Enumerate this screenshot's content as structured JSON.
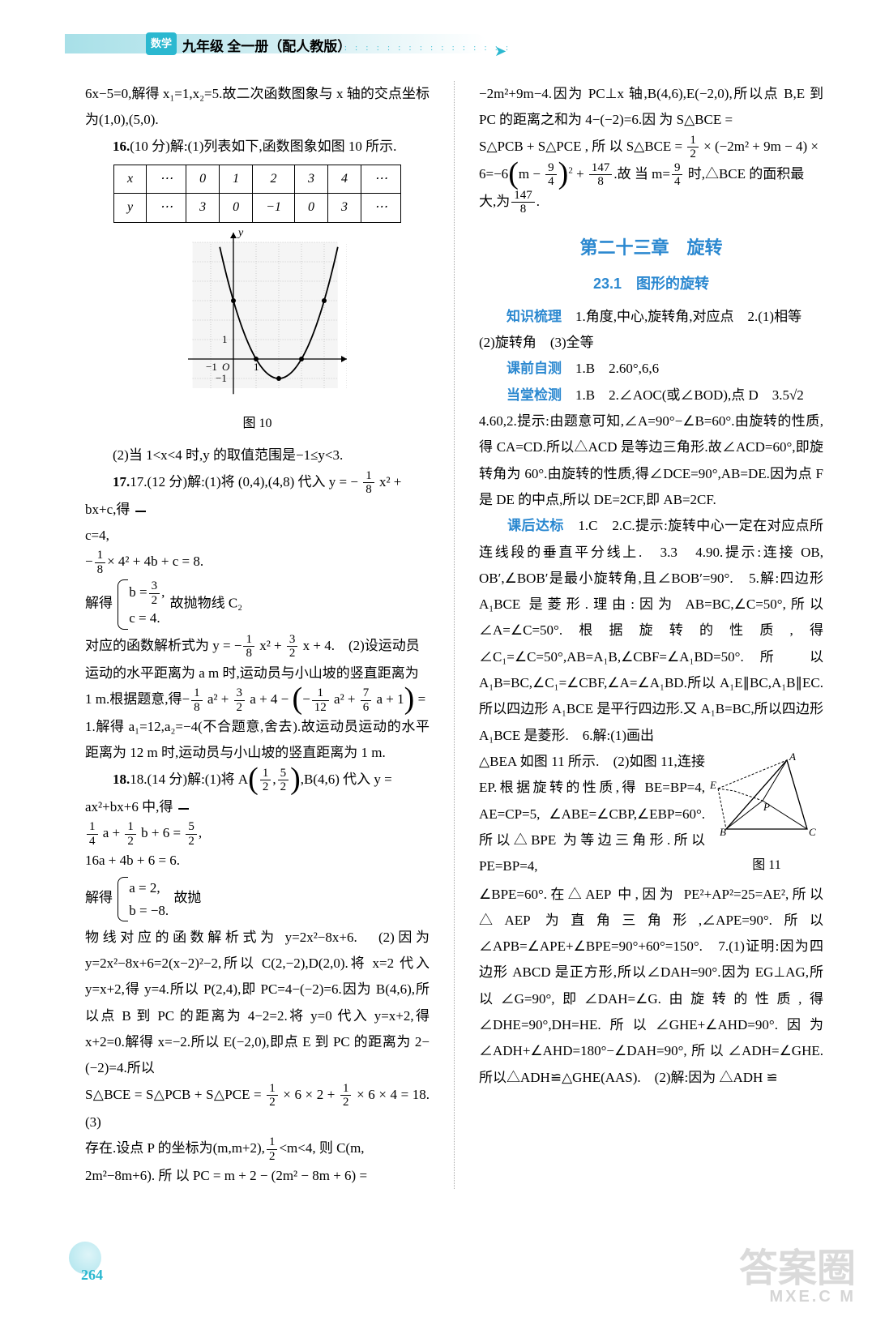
{
  "header": {
    "badge": "数学",
    "title": "九年级 全一册（配人教版）"
  },
  "left": {
    "p1": "6x−5=0,解得 x₁=1,x₂=5.故二次函数图象与 x 轴的交点坐标为(1,0),(5,0).",
    "p2_bold": "16.",
    "p2": "(10 分)解:(1)列表如下,函数图象如图 10 所示.",
    "table": {
      "r1": [
        "x",
        "⋯",
        "0",
        "1",
        "2",
        "3",
        "4",
        "⋯"
      ],
      "r2": [
        "y",
        "⋯",
        "3",
        "0",
        "−1",
        "0",
        "3",
        "⋯"
      ]
    },
    "graph": {
      "type": "parabola",
      "xlim": [
        -2,
        5
      ],
      "ylim": [
        -2,
        6
      ],
      "points_x": [
        0,
        1,
        2,
        3,
        4
      ],
      "points_y": [
        3,
        0,
        -1,
        0,
        3
      ],
      "axis_color": "#000",
      "grid_color": "#bbb",
      "curve_color": "#000",
      "bg_color": "#f5f5f5",
      "x_label": "x",
      "y_label": "y",
      "caption": "图 10"
    },
    "p3": "(2)当 1<x<4 时,y 的取值范围是−1≤y<3.",
    "p4_head": "17.(12 分)解:(1)将 (0,4),(4,8) 代入 y = −",
    "p4_tail": " x² +",
    "sys1_pre": "bx+c,得",
    "sys1_a": "c=4,",
    "sys1_b": "× 4² + 4b + c = 8.",
    "sys1_b_frac_top": "1",
    "sys1_b_frac_bot": "8",
    "sys1_mid": "解得",
    "sys2_a_lhs": "b =",
    "sys2_a_frac_top": "3",
    "sys2_a_frac_bot": "2",
    "sys2_a_tail": ",",
    "sys2_b": "c = 4.",
    "sys_tail": "故抛物线 C₂",
    "p5_pre": "对应的函数解析式为 y = −",
    "p5_mid1": " x² + ",
    "p5_mid2": " x + 4.　(2)设运动员",
    "p6": "运动的水平距离为 a m 时,运动员与小山坡的竖直距离为",
    "p7_pre": "1 m.根据题意,得−",
    "p7_a": " a² + ",
    "p7_b": " a + 4 − ",
    "p7_c": " a² + ",
    "p7_d": " a + 1",
    "p7_tail": " =",
    "p8": "1.解得 a₁=12,a₂=−4(不合题意,舍去).故运动员运动的水平距离为 12 m 时,运动员与小山坡的竖直距离为 1 m.",
    "p9_pre": "18.(14 分)解:(1)将 A",
    "p9_mid": ",B(4,6) 代入 y =",
    "sys3_pre": "ax²+bx+6 中,得",
    "sys3_a_f1t": "1",
    "sys3_a_f1b": "4",
    "sys3_a_mid": " a + ",
    "sys3_a_f2t": "1",
    "sys3_a_f2b": "2",
    "sys3_a_tail": " b + 6 = ",
    "sys3_a_f3t": "5",
    "sys3_a_f3b": "2",
    "sys3_a_end": ",",
    "sys3_b": "16a + 4b + 6 = 6.",
    "sys3_mid": "解得",
    "sys4_a": "a = 2,",
    "sys4_b": "b = −8.",
    "sys3_tail": "故抛",
    "p10": "物线对应的函数解析式为 y=2x²−8x+6.　(2)因为 y=2x²−8x+6=2(x−2)²−2,所以 C(2,−2),D(2,0).将 x=2 代入 y=x+2,得 y=4.所以 P(2,4),即 PC=4−(−2)=6.因为 B(4,6),所以点 B 到 PC 的距离为 4−2=2.将 y=0 代入 y=x+2,得 x+2=0.解得 x=−2.所以 E(−2,0),即点 E 到 PC 的距离为 2−(−2)=4.所以",
    "p11_pre": "S△BCE = S△PCB + S△PCE = ",
    "p11_m1": " × 6 × 2 + ",
    "p11_m2": " × 6 × 4 = 18.　(3)",
    "p12_pre": "存在.设点 P 的坐标为(m,m+2),",
    "p12_mid": "<m<4, 则 C(m,",
    "p13": "2m²−8m+6). 所 以 PC = m + 2 − (2m² − 8m + 6) ="
  },
  "right": {
    "p1_pre": "−2m²+9m−4.因为 PC⊥x 轴,B(4,6),E(−2,0),所以点 B,E 到 PC 的距离之和为 4−(−2)=6.因 为 S△BCE =",
    "p2_pre": "S△PCB + S△PCE , 所 以 S△BCE = ",
    "p2_mid": " × (−2m² + 9m − 4) ×",
    "p3_pre": "6=−6",
    "p3_m": "m − ",
    "p3_mid": " + ",
    "p3_end1": ".故 当 m=",
    "p3_end2": " 时,△BCE 的面积最",
    "p4_pre": "大,为",
    "p4_end": ".",
    "chapter": "第二十三章　旋转",
    "section": "23.1　图形的旋转",
    "k1_label": "知识梳理",
    "k1": "　1.角度,中心,旋转角,对应点　2.(1)相等",
    "k1b": "(2)旋转角　(3)全等",
    "k2_label": "课前自测",
    "k2": "　1.B　2.60°,6,6",
    "k3_label": "当堂检测",
    "k3": "　1.B　2.∠AOC(或∠BOD),点 D　3.5√2",
    "k3b": "4.60,2.提示:由题意可知,∠A=90°−∠B=60°.由旋转的性质,得 CA=CD.所以△ACD 是等边三角形.故∠ACD=60°,即旋转角为 60°.由旋转的性质,得∠DCE=90°,AB=DE.因为点 F 是 DE 的中点,所以 DE=2CF,即 AB=2CF.",
    "k4_label": "课后达标",
    "k4": "　1.C　2.C.提示:旋转中心一定在对应点所连线段的垂直平分线上.　3.3　4.90.提示:连接 OB, OB′,∠BOB′是最小旋转角,且∠BOB′=90°.　5.解:四边形 A₁BCE 是菱形.理由:因为 AB=BC,∠C=50°,所以∠A=∠C=50°.根据旋转的性质,得∠C₁=∠C=50°,AB=A₁B,∠CBF=∠A₁BD=50°.所 以 A₁B=BC,∠C₁=∠CBF,∠A=∠A₁BD.所以 A₁E∥BC,A₁B∥EC.所以四边形 A₁BCE 是平行四边形.又 A₁B=BC,所以四边形 A₁BCE 是菱形.　6.解:(1)画出",
    "fig11_caption": "图 11",
    "k4b": "△BEA 如图 11 所示.　(2)如图 11,连接 EP.根据旋转的性质,得 BE=BP=4, AE=CP=5, ∠ABE=∠CBP,∠EBP=60°.所以△BPE 为等边三角形.所以 PE=BP=4,",
    "k4c": "∠BPE=60°.在△AEP 中,因为 PE²+AP²=25=AE²,所以△AEP 为直角三角形,∠APE=90°.所以 ∠APB=∠APE+∠BPE=90°+60°=150°.　7.(1)证明:因为四边形 ABCD 是正方形,所以∠DAH=90°.因为 EG⊥AG,所以∠G=90°,即∠DAH=∠G.由旋转的性质,得∠DHE=90°,DH=HE.所以∠GHE+∠AHD=90°.因为∠ADH+∠AHD=180°−∠DAH=90°,所以∠ADH=∠GHE.所以△ADH≌△GHE(AAS).　(2)解:因为 △ADH ≌"
  },
  "page_number": "264",
  "watermark": {
    "main": "答案圈",
    "sub": "MXE.C  M"
  },
  "colors": {
    "accent": "#2bb8d0",
    "heading": "#2b88d0",
    "text": "#000000",
    "grid": "#bbbbbb"
  }
}
